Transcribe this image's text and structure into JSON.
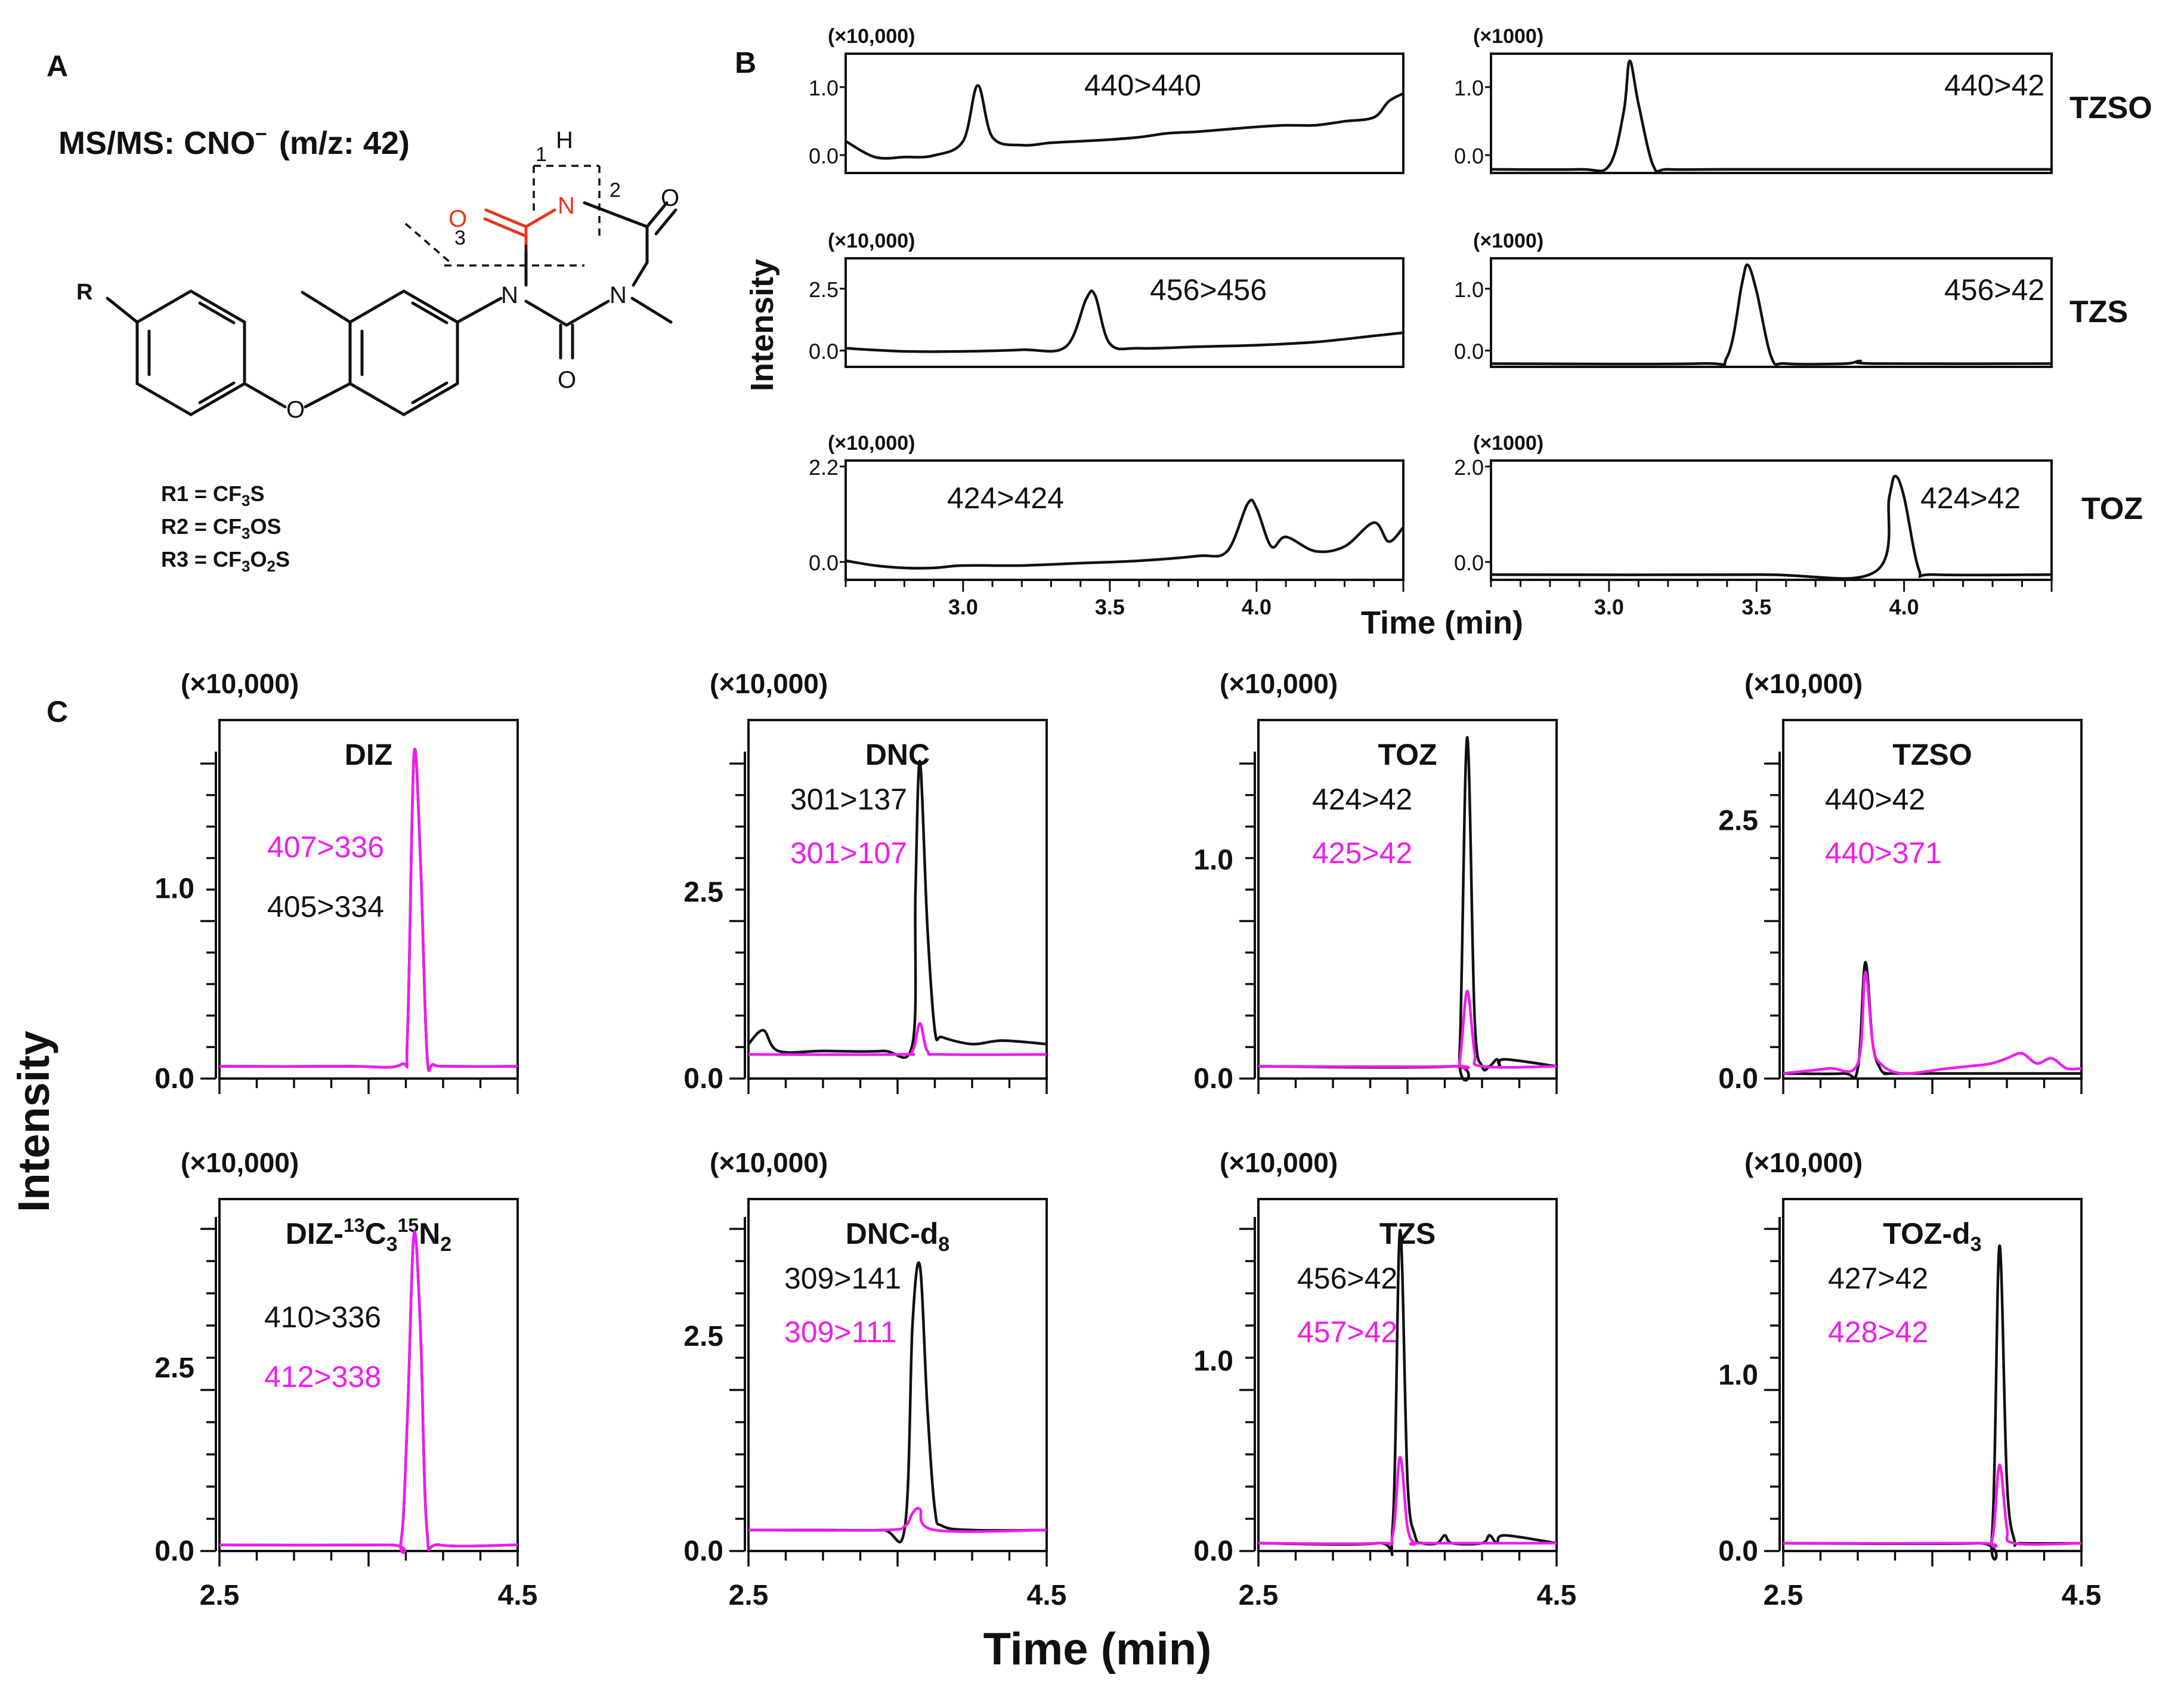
{
  "panel_labels": {
    "A": "A",
    "B": "B",
    "C": "C"
  },
  "structure": {
    "msms_label": "MS/MS: CNO",
    "msms_superscript": "−",
    "msms_mz": "(m/z: 42)",
    "atom_R": "R",
    "atom_N_top": "N",
    "atom_H": "H",
    "atom_N_left": "N",
    "atom_N_right": "N",
    "atom_O_red": "O",
    "atom_O_right": "O",
    "atom_O_bottom": "O",
    "atom_O_ether": "O",
    "cleave_1": "1",
    "cleave_2": "2",
    "cleave_3": "3",
    "substituents": [
      {
        "label": "R1 = CF",
        "sub": "3",
        "tail": "S"
      },
      {
        "label": "R2 = CF",
        "sub": "3",
        "tail": "OS"
      },
      {
        "label": "R3 = CF",
        "sub": "3",
        "tail": "O",
        "sub2": "2",
        "tail2": "S"
      }
    ]
  },
  "colors": {
    "black": "#111111",
    "magenta": "#ee1cee",
    "red": "#e8351c"
  },
  "panel_b": {
    "y_axis_label": "Intensity",
    "x_axis_label": "Time (min)",
    "x_ticks": [
      "3.0",
      "3.5",
      "4.0"
    ],
    "row_labels": [
      "TZSO",
      "TZS",
      "TOZ"
    ],
    "left_multiplier": "(×10,000)",
    "right_multiplier": "(×1000)",
    "rows": [
      {
        "left_transition": "440>440",
        "left_yticks": [
          "1.0",
          "0.0"
        ],
        "right_transition": "440>42",
        "right_yticks": [
          "1.0",
          "0.0"
        ]
      },
      {
        "left_transition": "456>456",
        "left_yticks": [
          "2.5",
          "0.0"
        ],
        "right_transition": "456>42",
        "right_yticks": [
          "1.0",
          "0.0"
        ]
      },
      {
        "left_transition": "424>424",
        "left_yticks": [
          "2.2",
          "0.0"
        ],
        "right_transition": "424>42",
        "right_yticks": [
          "2.0",
          "0.0"
        ]
      }
    ]
  },
  "panel_c": {
    "y_axis_label": "Intensity",
    "x_axis_label": "Time (min)",
    "x_ticks": [
      "2.5",
      "4.5"
    ],
    "multiplier": "(×10,000)",
    "charts": [
      {
        "title": "DIZ",
        "title_sub": "",
        "title_tail": "",
        "t1": "407>336",
        "t1_color": "magenta",
        "t2": "405>334",
        "t2_color": "black",
        "yticks": [
          "1.0",
          "0.0"
        ]
      },
      {
        "title": "DNC",
        "title_sub": "",
        "title_tail": "",
        "t1": "301>137",
        "t1_color": "black",
        "t2": "301>107",
        "t2_color": "magenta",
        "yticks": [
          "2.5",
          "0.0"
        ]
      },
      {
        "title": "TOZ",
        "title_sub": "",
        "title_tail": "",
        "t1": "424>42",
        "t1_color": "black",
        "t2": "425>42",
        "t2_color": "magenta",
        "yticks": [
          "1.0",
          "0.0"
        ]
      },
      {
        "title": "TZSO",
        "title_sub": "",
        "title_tail": "",
        "t1": "440>42",
        "t1_color": "black",
        "t2": "440>371",
        "t2_color": "magenta",
        "yticks": [
          "2.5",
          "0.0"
        ]
      },
      {
        "title": "DIZ-",
        "title_sup1": "13",
        "title_mid": "C",
        "title_sub": "3",
        "title_sup2": "15",
        "title_tail": "N",
        "title_sub2": "2",
        "t1": "410>336",
        "t1_color": "black",
        "t2": "412>338",
        "t2_color": "magenta",
        "yticks": [
          "2.5",
          "0.0"
        ]
      },
      {
        "title": "DNC-d",
        "title_sub": "8",
        "title_tail": "",
        "t1": "309>141",
        "t1_color": "black",
        "t2": "309>111",
        "t2_color": "magenta",
        "yticks": [
          "2.5",
          "0.0"
        ]
      },
      {
        "title": "TZS",
        "title_sub": "",
        "title_tail": "",
        "t1": "456>42",
        "t1_color": "black",
        "t2": "457>42",
        "t2_color": "magenta",
        "yticks": [
          "1.0",
          "0.0"
        ]
      },
      {
        "title": "TOZ-d",
        "title_sub": "3",
        "title_tail": "",
        "t1": "427>42",
        "t1_color": "black",
        "t2": "428>42",
        "t2_color": "magenta",
        "yticks": [
          "1.0",
          "0.0"
        ]
      }
    ]
  },
  "chart_data": [
    {
      "type": "line",
      "panel": "B",
      "row": "TZSO",
      "name": "440>440",
      "xlim": [
        2.6,
        4.5
      ],
      "ylim": [
        -0.2,
        1.3
      ],
      "unit": "×10,000",
      "x": [
        2.6,
        2.7,
        2.8,
        2.9,
        3.0,
        3.05,
        3.1,
        3.2,
        3.3,
        3.4,
        3.5,
        3.6,
        3.7,
        3.8,
        3.9,
        4.0,
        4.1,
        4.2,
        4.3,
        4.4,
        4.45,
        4.5
      ],
      "y": [
        0.2,
        0.0,
        0.0,
        0.02,
        0.2,
        0.9,
        0.25,
        0.15,
        0.18,
        0.2,
        0.22,
        0.25,
        0.3,
        0.32,
        0.35,
        0.38,
        0.4,
        0.4,
        0.45,
        0.5,
        0.7,
        0.8
      ]
    },
    {
      "type": "line",
      "panel": "B",
      "row": "TZSO",
      "name": "440>42",
      "xlim": [
        2.6,
        4.5
      ],
      "ylim": [
        -0.05,
        1.6
      ],
      "unit": "×1000",
      "x": [
        2.6,
        2.9,
        3.0,
        3.05,
        3.07,
        3.1,
        3.15,
        3.2,
        3.4,
        4.0,
        4.5
      ],
      "y": [
        0,
        0,
        0.05,
        0.8,
        1.5,
        0.9,
        0.05,
        0,
        0,
        0,
        0
      ]
    },
    {
      "type": "line",
      "panel": "B",
      "row": "TZS",
      "name": "456>456",
      "xlim": [
        2.6,
        4.5
      ],
      "ylim": [
        -0.3,
        3.2
      ],
      "unit": "×10,000",
      "x": [
        2.6,
        2.8,
        3.0,
        3.2,
        3.35,
        3.42,
        3.45,
        3.5,
        3.6,
        3.8,
        4.0,
        4.2,
        4.4,
        4.5
      ],
      "y": [
        0.3,
        0.2,
        0.2,
        0.25,
        0.35,
        1.9,
        2.0,
        0.45,
        0.3,
        0.35,
        0.4,
        0.5,
        0.7,
        0.8
      ]
    },
    {
      "type": "line",
      "panel": "B",
      "row": "TZS",
      "name": "456>42",
      "xlim": [
        2.6,
        4.5
      ],
      "ylim": [
        -0.05,
        1.6
      ],
      "unit": "×1000",
      "x": [
        2.6,
        3.3,
        3.4,
        3.45,
        3.47,
        3.5,
        3.55,
        3.6,
        3.8,
        3.85,
        3.9,
        4.5
      ],
      "y": [
        0,
        0,
        0.1,
        1.2,
        1.5,
        1.1,
        0.1,
        0,
        0,
        0.04,
        0,
        0
      ]
    },
    {
      "type": "line",
      "panel": "B",
      "row": "TOZ",
      "name": "424>424",
      "xlim": [
        2.6,
        4.5
      ],
      "ylim": [
        -0.3,
        2.2
      ],
      "unit": "×10,000",
      "x": [
        2.6,
        2.7,
        2.8,
        2.9,
        3.0,
        3.2,
        3.4,
        3.6,
        3.8,
        3.9,
        3.97,
        4.0,
        4.05,
        4.1,
        4.2,
        4.3,
        4.4,
        4.45,
        4.5
      ],
      "y": [
        0.1,
        0.0,
        -0.05,
        -0.05,
        0.0,
        0.0,
        0.05,
        0.1,
        0.2,
        0.3,
        1.3,
        1.2,
        0.4,
        0.6,
        0.3,
        0.4,
        0.9,
        0.5,
        0.8
      ]
    },
    {
      "type": "line",
      "panel": "B",
      "row": "TOZ",
      "name": "424>42",
      "xlim": [
        2.6,
        4.5
      ],
      "ylim": [
        -0.1,
        2.2
      ],
      "unit": "×1000",
      "x": [
        2.6,
        3.5,
        3.9,
        3.95,
        3.97,
        4.0,
        4.05,
        4.1,
        4.5
      ],
      "y": [
        0,
        0,
        0.05,
        1.5,
        1.9,
        1.5,
        0.1,
        0,
        0
      ]
    },
    {
      "type": "line",
      "panel": "C",
      "title": "DIZ",
      "xlim": [
        2.5,
        4.8
      ],
      "ylim": [
        -0.05,
        2.0
      ],
      "unit": "×10,000",
      "series": [
        {
          "name": "405>334",
          "color": "black",
          "x": [
            2.5,
            3.5,
            3.9,
            3.95,
            4.0,
            4.05,
            4.1,
            4.15,
            4.3,
            4.8
          ],
          "y": [
            0.02,
            0.02,
            0.03,
            0.2,
            1.8,
            1.2,
            0.1,
            0.03,
            0.02,
            0.02
          ]
        },
        {
          "name": "407>336",
          "color": "magenta",
          "x": [
            2.5,
            3.5,
            3.9,
            3.95,
            4.0,
            4.05,
            4.1,
            4.15,
            4.3,
            4.8
          ],
          "y": [
            0.02,
            0.02,
            0.03,
            0.2,
            1.8,
            1.2,
            0.1,
            0.03,
            0.02,
            0.02
          ]
        }
      ]
    },
    {
      "type": "line",
      "panel": "C",
      "title": "DNC",
      "xlim": [
        2.5,
        4.5
      ],
      "ylim": [
        -0.2,
        5.0
      ],
      "unit": "×10,000",
      "series": [
        {
          "name": "301>137",
          "color": "black",
          "x": [
            2.5,
            2.6,
            2.7,
            3.0,
            3.4,
            3.6,
            3.62,
            3.65,
            3.7,
            3.75,
            3.8,
            4.0,
            4.2,
            4.5
          ],
          "y": [
            0.3,
            0.5,
            0.2,
            0.2,
            0.2,
            0.3,
            2.5,
            4.4,
            2.0,
            0.5,
            0.4,
            0.3,
            0.35,
            0.3
          ]
        },
        {
          "name": "301>107",
          "color": "magenta",
          "x": [
            2.5,
            3.5,
            3.6,
            3.65,
            3.7,
            3.8,
            4.5
          ],
          "y": [
            0.15,
            0.15,
            0.2,
            0.6,
            0.2,
            0.15,
            0.15
          ]
        }
      ]
    },
    {
      "type": "line",
      "panel": "C",
      "title": "TOZ",
      "xlim": [
        2.5,
        4.5
      ],
      "ylim": [
        -0.05,
        2.0
      ],
      "unit": "×10,000",
      "series": [
        {
          "name": "424>42",
          "color": "black",
          "x": [
            2.5,
            3.8,
            3.85,
            3.9,
            3.95,
            4.0,
            4.05,
            4.1,
            4.12,
            4.15,
            4.5
          ],
          "y": [
            0.02,
            0.02,
            0.1,
            1.9,
            0.3,
            0.02,
            0.02,
            0.06,
            0.02,
            0.06,
            0.02
          ]
        },
        {
          "name": "425>42",
          "color": "magenta",
          "x": [
            2.5,
            3.8,
            3.85,
            3.9,
            3.95,
            4.0,
            4.5
          ],
          "y": [
            0.02,
            0.02,
            0.05,
            0.45,
            0.1,
            0.02,
            0.02
          ]
        }
      ]
    },
    {
      "type": "line",
      "panel": "C",
      "title": "TZSO",
      "xlim": [
        2.5,
        4.5
      ],
      "ylim": [
        -0.05,
        3.5
      ],
      "unit": "×10,000",
      "series": [
        {
          "name": "440>42",
          "color": "black",
          "x": [
            2.5,
            2.9,
            3.0,
            3.05,
            3.1,
            3.15,
            3.2,
            3.3,
            4.5
          ],
          "y": [
            0.0,
            0.0,
            0.05,
            1.1,
            0.3,
            0.05,
            0.0,
            0.0,
            0.0
          ]
        },
        {
          "name": "440>371",
          "color": "magenta",
          "x": [
            2.5,
            2.8,
            3.0,
            3.05,
            3.1,
            3.15,
            3.3,
            3.6,
            3.8,
            3.9,
            4.0,
            4.1,
            4.2,
            4.3,
            4.4,
            4.5
          ],
          "y": [
            0.0,
            0.05,
            0.1,
            1.0,
            0.3,
            0.1,
            0.0,
            0.05,
            0.08,
            0.1,
            0.15,
            0.2,
            0.1,
            0.15,
            0.05,
            0.05
          ]
        }
      ]
    },
    {
      "type": "line",
      "panel": "C",
      "title": "DIZ-13C315N2",
      "xlim": [
        2.5,
        4.8
      ],
      "ylim": [
        -0.05,
        4.0
      ],
      "unit": "×10,000",
      "series": [
        {
          "name": "410>336",
          "color": "black",
          "x": [
            2.5,
            3.8,
            3.9,
            3.95,
            4.0,
            4.05,
            4.1,
            4.2,
            4.8
          ],
          "y": [
            0.02,
            0.02,
            0.05,
            1.5,
            3.6,
            2.5,
            0.2,
            0.02,
            0.02
          ]
        },
        {
          "name": "412>338",
          "color": "magenta",
          "x": [
            2.5,
            3.8,
            3.9,
            3.95,
            4.0,
            4.05,
            4.1,
            4.2,
            4.8
          ],
          "y": [
            0.02,
            0.02,
            0.05,
            1.5,
            3.6,
            2.5,
            0.2,
            0.02,
            0.02
          ]
        }
      ]
    },
    {
      "type": "line",
      "panel": "C",
      "title": "DNC-d8",
      "xlim": [
        2.5,
        4.5
      ],
      "ylim": [
        -0.2,
        4.0
      ],
      "unit": "×10,000",
      "series": [
        {
          "name": "309>141",
          "color": "black",
          "x": [
            2.5,
            3.0,
            3.4,
            3.55,
            3.6,
            3.65,
            3.7,
            3.75,
            3.8,
            4.0,
            4.5
          ],
          "y": [
            0.05,
            0.05,
            0.05,
            0.1,
            2.5,
            3.2,
            1.5,
            0.3,
            0.1,
            0.05,
            0.05
          ]
        },
        {
          "name": "309>111",
          "color": "magenta",
          "x": [
            2.5,
            3.4,
            3.55,
            3.6,
            3.65,
            3.75,
            4.5
          ],
          "y": [
            0.05,
            0.05,
            0.1,
            0.25,
            0.3,
            0.05,
            0.05
          ]
        }
      ]
    },
    {
      "type": "line",
      "panel": "C",
      "title": "TZS",
      "xlim": [
        2.5,
        4.5
      ],
      "ylim": [
        -0.05,
        2.2
      ],
      "unit": "×10,000",
      "series": [
        {
          "name": "456>42",
          "color": "black",
          "x": [
            2.5,
            3.3,
            3.4,
            3.45,
            3.5,
            3.55,
            3.6,
            3.7,
            3.75,
            3.8,
            4.0,
            4.05,
            4.1,
            4.15,
            4.5
          ],
          "y": [
            0.0,
            0.0,
            0.1,
            2.0,
            0.4,
            0.05,
            0.0,
            0.0,
            0.05,
            0.0,
            0.0,
            0.05,
            0.0,
            0.05,
            0.0
          ]
        },
        {
          "name": "457>42",
          "color": "magenta",
          "x": [
            2.5,
            3.3,
            3.4,
            3.45,
            3.5,
            3.55,
            3.6,
            4.5
          ],
          "y": [
            0.0,
            0.0,
            0.05,
            0.55,
            0.1,
            0.0,
            0.0,
            0.0
          ]
        }
      ]
    },
    {
      "type": "line",
      "panel": "C",
      "title": "TOZ-d3",
      "xlim": [
        2.5,
        4.5
      ],
      "ylim": [
        -0.05,
        2.2
      ],
      "unit": "×10,000",
      "series": [
        {
          "name": "427>42",
          "color": "black",
          "x": [
            2.5,
            3.8,
            3.9,
            3.95,
            4.0,
            4.05,
            4.1,
            4.5
          ],
          "y": [
            0.0,
            0.0,
            0.05,
            1.9,
            0.4,
            0.02,
            0.0,
            0.0
          ]
        },
        {
          "name": "428>42",
          "color": "magenta",
          "x": [
            2.5,
            3.8,
            3.9,
            3.95,
            4.0,
            4.05,
            4.5
          ],
          "y": [
            0.0,
            0.0,
            0.02,
            0.5,
            0.1,
            0.0,
            0.0
          ]
        }
      ]
    }
  ]
}
